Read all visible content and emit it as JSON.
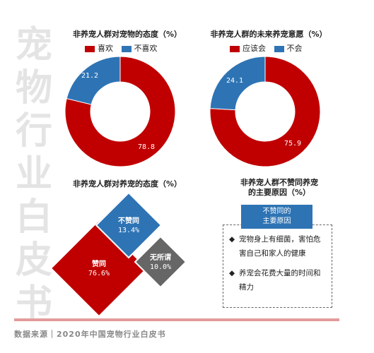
{
  "watermark": [
    "宠",
    "物",
    "行",
    "业",
    "白",
    "皮",
    "书"
  ],
  "colors": {
    "red": "#c00000",
    "blue": "#2e74b5",
    "gray": "#666666"
  },
  "chart_data": [
    {
      "type": "pie",
      "title": "非养宠人群对宠物的态度（%）",
      "categories": [
        "喜欢",
        "不喜欢"
      ],
      "values": [
        78.8,
        21.2
      ],
      "labels": [
        "78.8",
        "21.2"
      ],
      "colors": [
        "#c00000",
        "#2e74b5"
      ],
      "legend": "top"
    },
    {
      "type": "pie",
      "title": "非养宠人群的未来养宠意愿（%）",
      "categories": [
        "应该会",
        "不会"
      ],
      "values": [
        75.9,
        24.1
      ],
      "labels": [
        "75.9",
        "24.1"
      ],
      "colors": [
        "#c00000",
        "#2e74b5"
      ],
      "legend": "top"
    },
    {
      "type": "area",
      "title": "非养宠人群对养宠的态度（%）",
      "categories": [
        "赞同",
        "不赞同",
        "无所谓"
      ],
      "values": [
        76.6,
        13.4,
        10.0
      ],
      "labels": [
        "76.6%",
        "13.4%",
        "10.0%"
      ],
      "colors": [
        "#c00000",
        "#2e74b5",
        "#666666"
      ]
    }
  ],
  "reasons": {
    "title_line1": "非养宠人群不赞同养宠",
    "title_line2": "的主要原因（%）",
    "header_line1": "不赞同的",
    "header_line2": "主要原因",
    "items": [
      {
        "bullet": "◆",
        "text": "宠物身上有细菌，害怕危害自己和家人的健康"
      },
      {
        "bullet": "◆",
        "text": "养宠会花费大量的时间和精力"
      }
    ]
  },
  "footer": "数据来源｜2020年中国宠物行业白皮书"
}
